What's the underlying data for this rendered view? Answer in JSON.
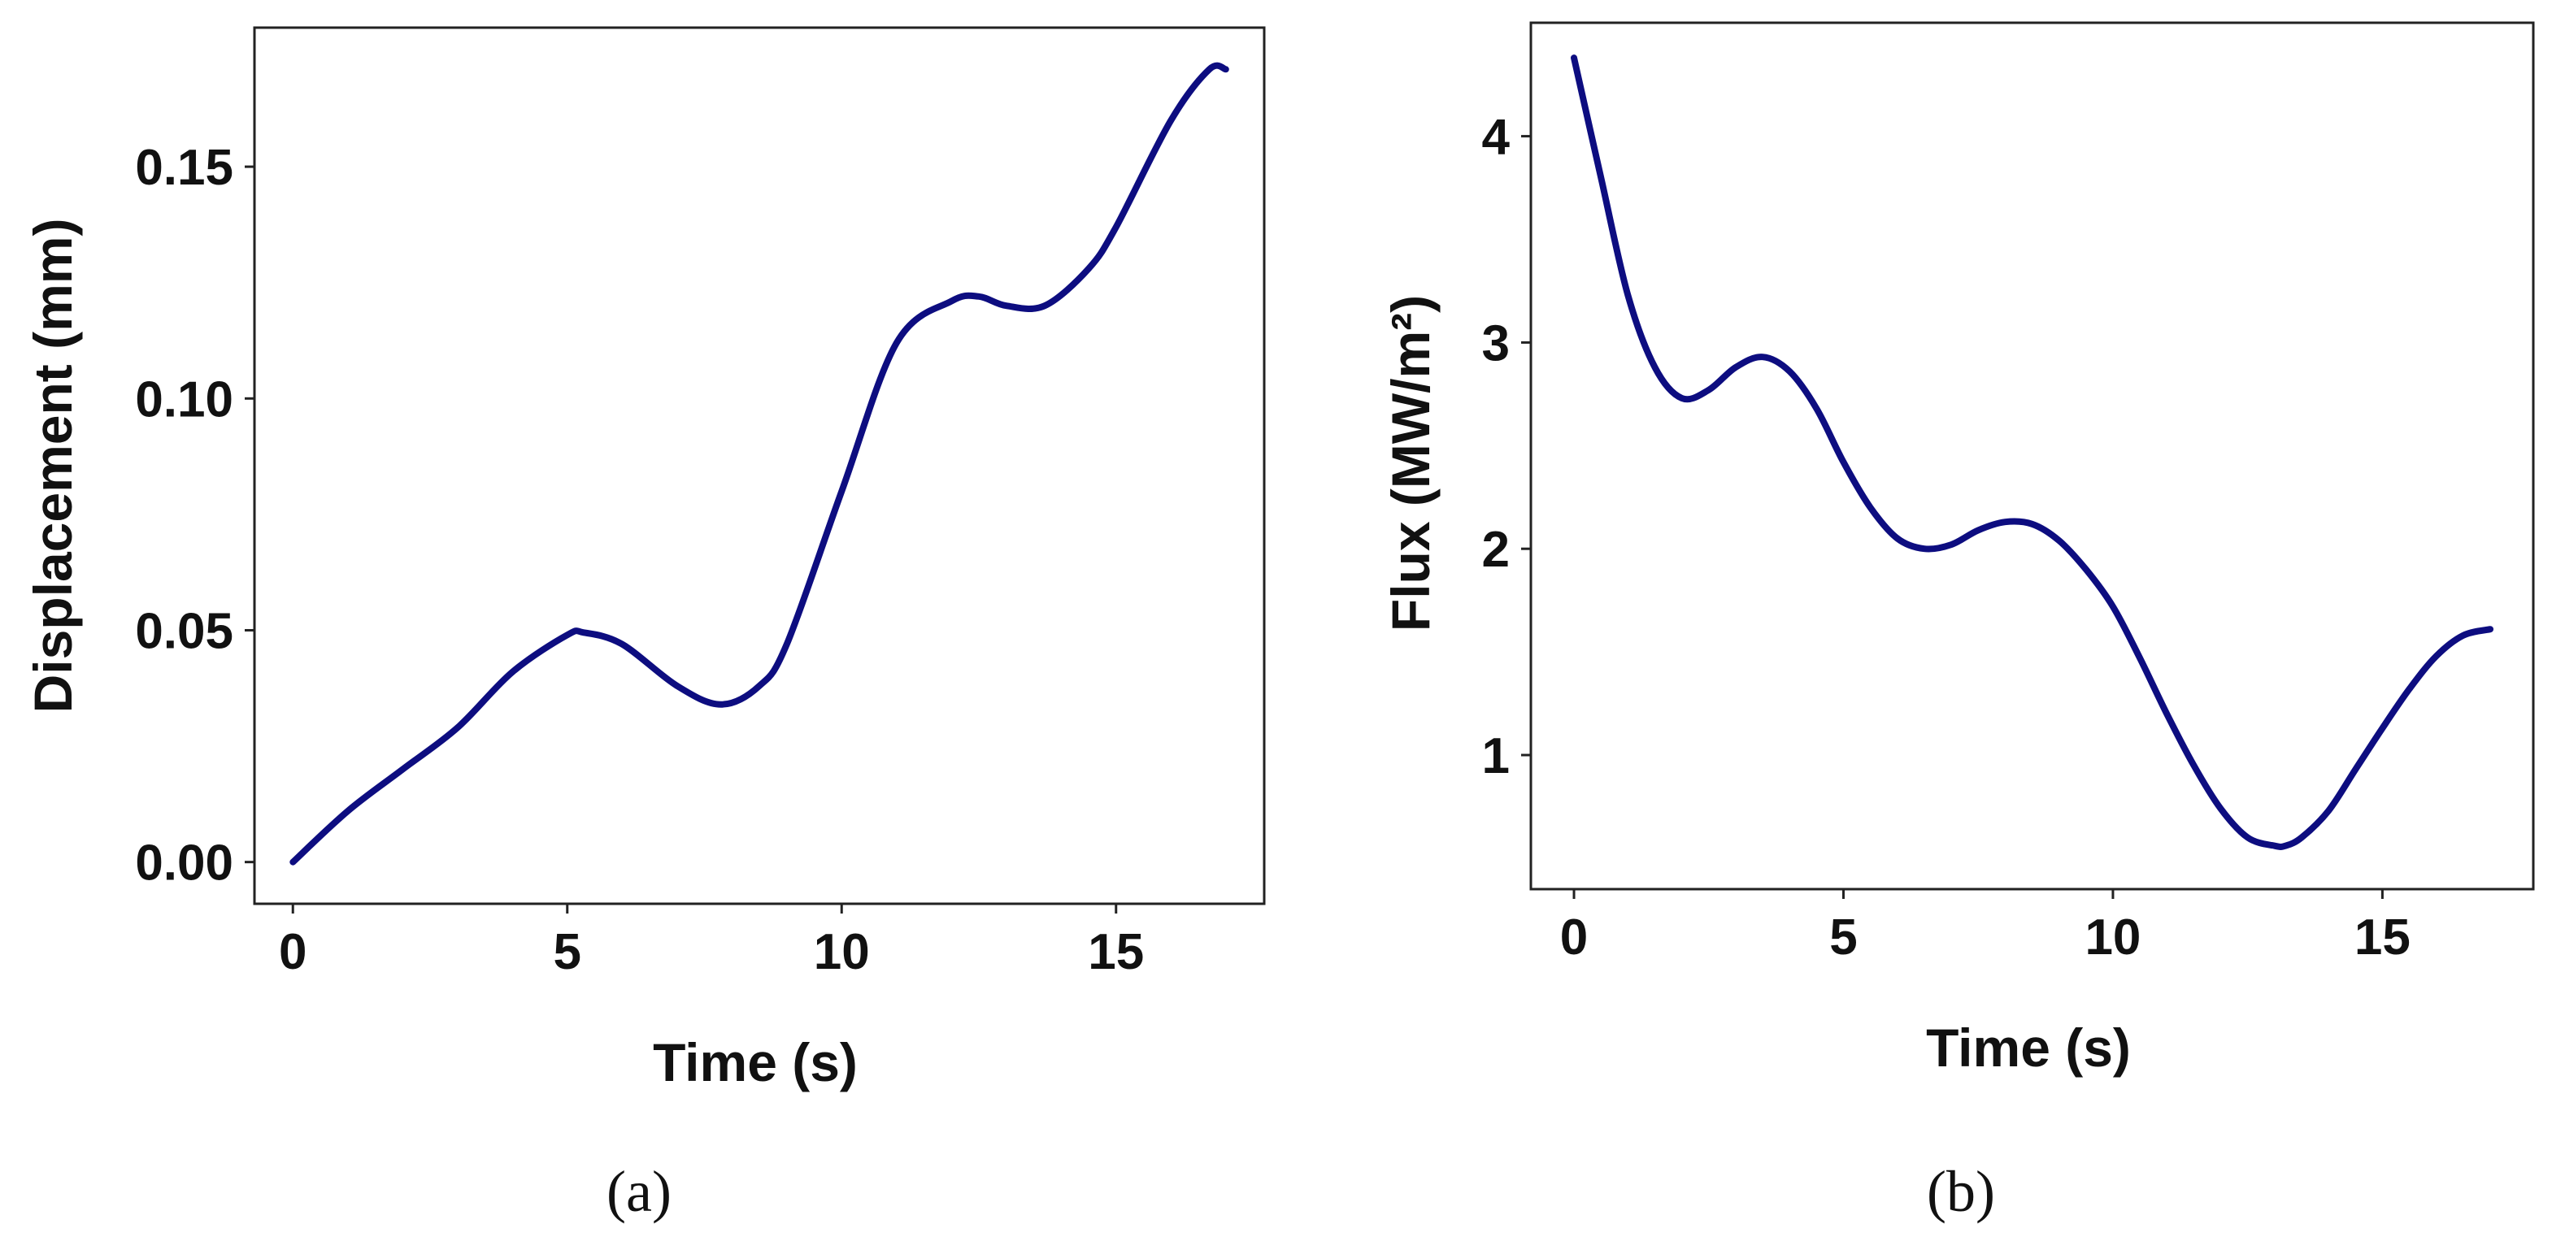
{
  "chart_data": [
    {
      "type": "line",
      "panel_label": "(a)",
      "xlabel": "Time (s)",
      "ylabel": "Displacement (mm)",
      "xlim": [
        -0.7,
        17.7
      ],
      "ylim": [
        -0.009,
        0.18
      ],
      "xticks": [
        "0",
        "5",
        "10",
        "15"
      ],
      "yticks": [
        "0.00",
        "0.05",
        "0.10",
        "0.15"
      ],
      "color": "#0d0d80",
      "series": [
        {
          "x": [
            0,
            1,
            2,
            3,
            4,
            5,
            5.3,
            6,
            7,
            7.8,
            8.5,
            9,
            10,
            11,
            12,
            12.5,
            13,
            13.7,
            14.5,
            15,
            16,
            16.7,
            17
          ],
          "values": [
            0.0,
            0.011,
            0.02,
            0.029,
            0.041,
            0.049,
            0.0495,
            0.047,
            0.038,
            0.034,
            0.038,
            0.047,
            0.08,
            0.112,
            0.121,
            0.122,
            0.12,
            0.12,
            0.128,
            0.137,
            0.16,
            0.171,
            0.171
          ]
        }
      ]
    },
    {
      "type": "line",
      "panel_label": "(b)",
      "xlabel": "Time (s)",
      "ylabel": "Flux (MW/m²)",
      "xlim": [
        -0.8,
        17.8
      ],
      "ylim": [
        0.35,
        4.55
      ],
      "xticks": [
        "0",
        "5",
        "10",
        "15"
      ],
      "yticks": [
        "1",
        "2",
        "3",
        "4"
      ],
      "color": "#0d0d80",
      "series": [
        {
          "x": [
            0,
            0.5,
            1,
            1.5,
            2,
            2.5,
            3,
            3.5,
            4,
            4.5,
            5,
            5.5,
            6,
            6.5,
            7,
            7.5,
            8,
            8.5,
            9,
            9.5,
            10,
            10.5,
            11,
            11.5,
            12,
            12.5,
            13,
            13.2,
            13.5,
            14,
            14.5,
            15,
            15.5,
            16,
            16.5,
            17
          ],
          "values": [
            4.38,
            3.8,
            3.23,
            2.88,
            2.73,
            2.77,
            2.88,
            2.93,
            2.86,
            2.68,
            2.42,
            2.2,
            2.05,
            2.0,
            2.02,
            2.09,
            2.13,
            2.12,
            2.04,
            1.9,
            1.72,
            1.47,
            1.2,
            0.95,
            0.74,
            0.6,
            0.56,
            0.56,
            0.6,
            0.73,
            0.93,
            1.13,
            1.32,
            1.48,
            1.58,
            1.61
          ]
        }
      ]
    }
  ]
}
